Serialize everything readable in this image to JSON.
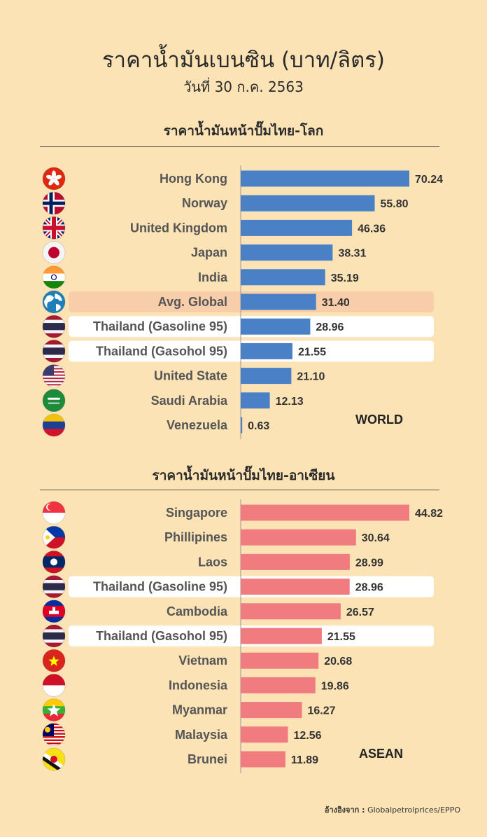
{
  "header": {
    "title": "ราคาน้ำมันเบนซิน (บาท/ลิตร)",
    "date": "วันที่ 30 ก.ค. 2563"
  },
  "chart_data": [
    {
      "type": "bar",
      "title": "ราคาน้ำมันหน้าปั๊มไทย-โลก",
      "tag": "WORLD",
      "categories": [
        "Hong Kong",
        "Norway",
        "United Kingdom",
        "Japan",
        "India",
        "Avg. Global",
        "Thailand (Gasoline 95)",
        "Thailand (Gasohol 95)",
        "United State",
        "Saudi Arabia",
        "Venezuela"
      ],
      "values": [
        70.24,
        55.8,
        46.36,
        38.31,
        35.19,
        31.4,
        28.96,
        21.55,
        21.1,
        12.13,
        0.63
      ],
      "value_labels": [
        "70.24",
        "55.80",
        "46.36",
        "38.31",
        "35.19",
        "31.40",
        "28.96",
        "21.55",
        "21.10",
        "12.13",
        "0.63"
      ],
      "highlight": [
        "none",
        "none",
        "none",
        "none",
        "none",
        "avg",
        "thai",
        "thai",
        "none",
        "none",
        "none"
      ],
      "flags": [
        "hong-kong-flag-icon",
        "norway-flag-icon",
        "uk-flag-icon",
        "japan-flag-icon",
        "india-flag-icon",
        "globe-icon",
        "thailand-flag-icon",
        "thailand-flag-icon",
        "usa-flag-icon",
        "saudi-flag-icon",
        "venezuela-flag-icon"
      ],
      "bar_color": "#4a80c6",
      "ylim": [
        0,
        70.24
      ]
    },
    {
      "type": "bar",
      "title": "ราคาน้ำมันหน้าปั๊มไทย-อาเซียน",
      "tag": "ASEAN",
      "categories": [
        "Singapore",
        "Phillipines",
        "Laos",
        "Thailand (Gasoline 95)",
        "Cambodia",
        "Thailand (Gasohol 95)",
        "Vietnam",
        "Indonesia",
        "Myanmar",
        "Malaysia",
        "Brunei"
      ],
      "values": [
        44.82,
        30.64,
        28.99,
        28.96,
        26.57,
        21.55,
        20.68,
        19.86,
        16.27,
        12.56,
        11.89
      ],
      "value_labels": [
        "44.82",
        "30.64",
        "28.99",
        "28.96",
        "26.57",
        "21.55",
        "20.68",
        "19.86",
        "16.27",
        "12.56",
        "11.89"
      ],
      "highlight": [
        "none",
        "none",
        "none",
        "thai",
        "none",
        "thai",
        "none",
        "none",
        "none",
        "none",
        "none"
      ],
      "flags": [
        "singapore-flag-icon",
        "philippines-flag-icon",
        "laos-flag-icon",
        "thailand-flag-icon",
        "cambodia-flag-icon",
        "thailand-flag-icon",
        "vietnam-flag-icon",
        "indonesia-flag-icon",
        "myanmar-flag-icon",
        "malaysia-flag-icon",
        "brunei-flag-icon"
      ],
      "bar_color": "#f07c80",
      "ylim": [
        0,
        44.82
      ]
    }
  ],
  "colors": {
    "background": "#fbe3b6",
    "avg_highlight": "#f7cdaa",
    "thai_highlight": "#ffffff"
  },
  "source": {
    "label": "อ้างอิงจาก :",
    "text": "Globalpetrolprices/EPPO"
  }
}
